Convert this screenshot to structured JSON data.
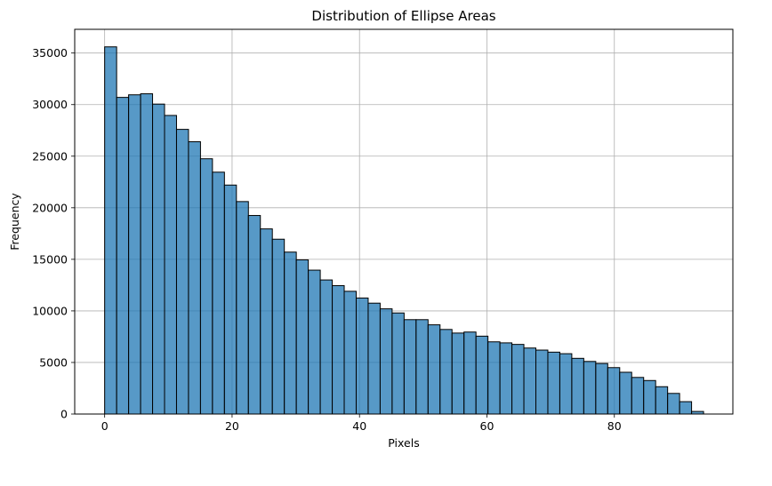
{
  "chart_data": {
    "type": "bar",
    "title": "Distribution of Ellipse Areas",
    "xlabel": "Pixels",
    "ylabel": "Frequency",
    "xlim": [
      -4.7,
      98.6
    ],
    "ylim": [
      0,
      37300
    ],
    "grid": true,
    "bar_color": "#1f77b4",
    "bar_opacity": 0.75,
    "edge_color": "#000000",
    "bin_start": 0.0,
    "bin_width": 1.88,
    "values": [
      35600,
      30700,
      30950,
      31050,
      30050,
      28950,
      27600,
      26400,
      24750,
      23450,
      22200,
      20600,
      19250,
      17950,
      16950,
      15700,
      14950,
      13950,
      13000,
      12450,
      11900,
      11250,
      10750,
      10200,
      9800,
      9150,
      9150,
      8650,
      8200,
      7850,
      7950,
      7550,
      7000,
      6900,
      6750,
      6400,
      6200,
      6000,
      5850,
      5400,
      5100,
      4900,
      4500,
      4050,
      3550,
      3250,
      2650,
      2000,
      1200,
      250
    ],
    "xticks": [
      0,
      20,
      40,
      60,
      80
    ],
    "yticks": [
      0,
      5000,
      10000,
      15000,
      20000,
      25000,
      30000,
      35000
    ]
  }
}
